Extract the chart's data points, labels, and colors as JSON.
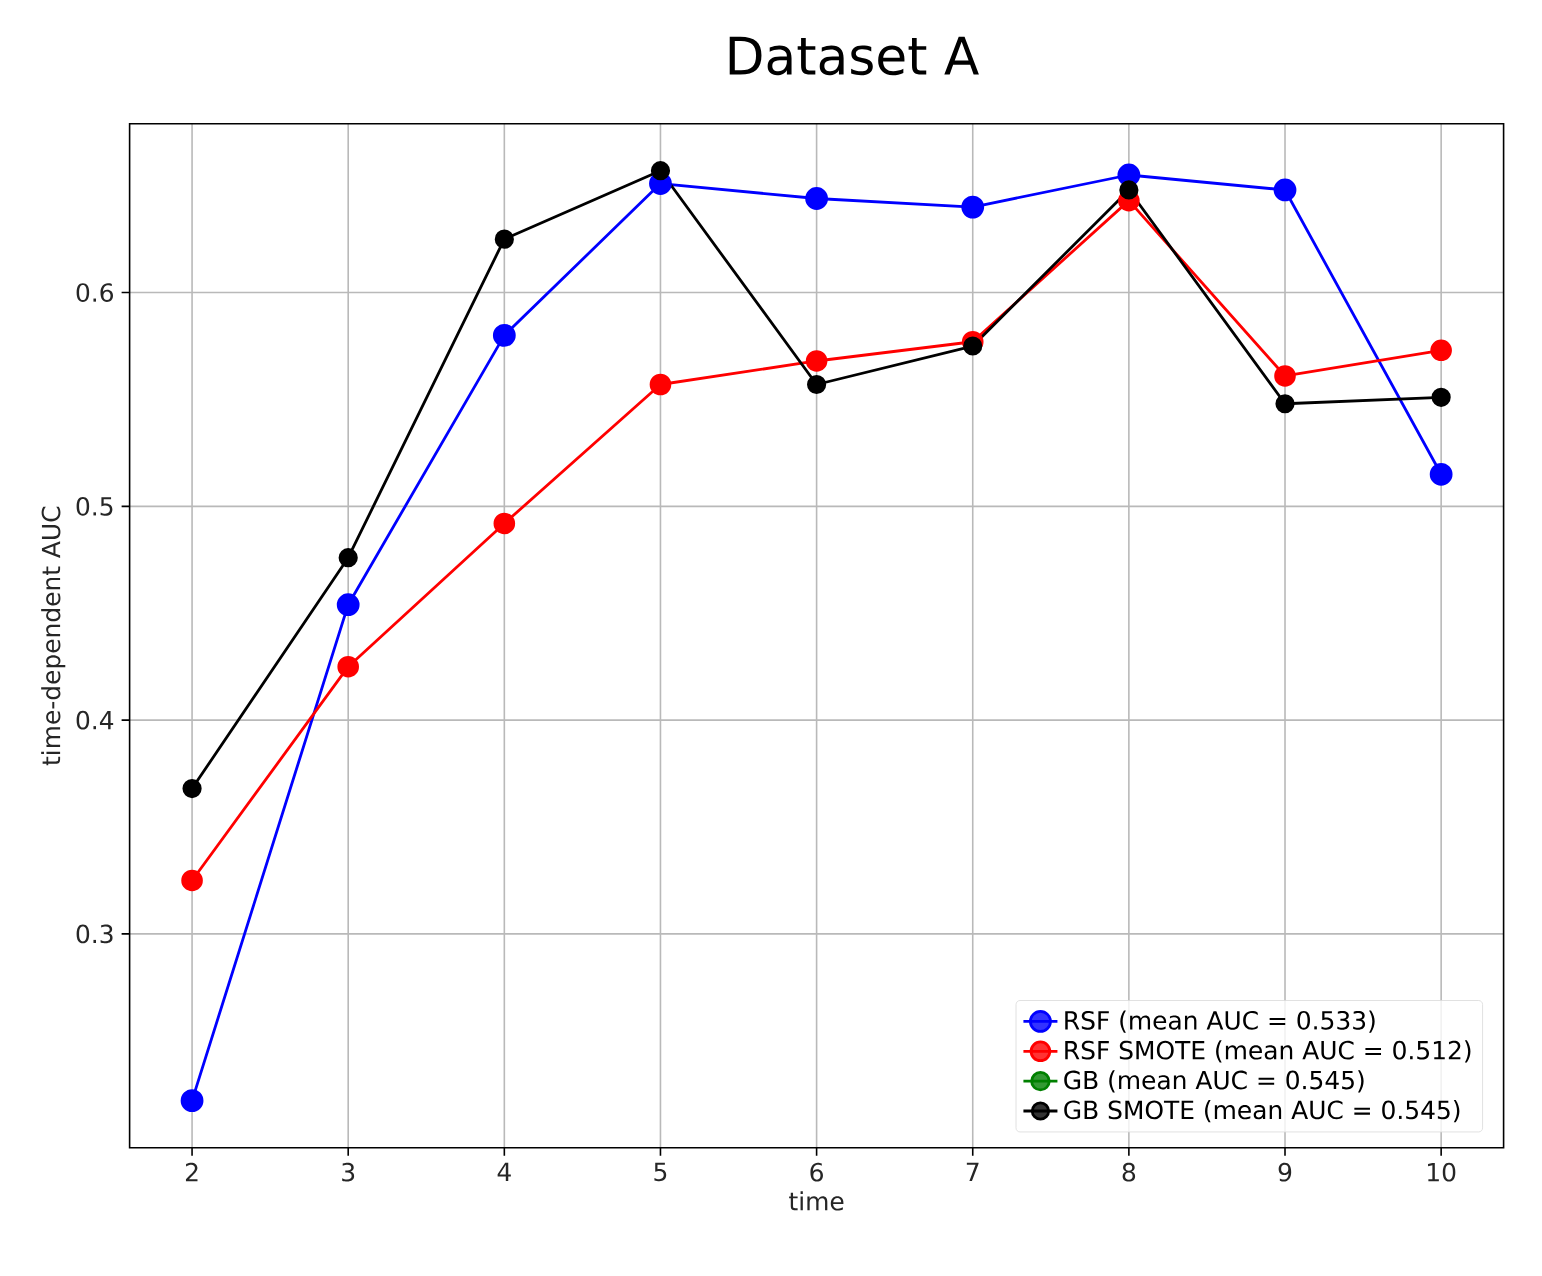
{
  "chart_data": {
    "type": "line",
    "title": "Dataset A",
    "xlabel": "time",
    "ylabel": "time-dependent AUC",
    "x": [
      2,
      3,
      4,
      5,
      6,
      7,
      8,
      9,
      10
    ],
    "series": [
      {
        "name": "RSF (mean AUC = 0.533)",
        "color": "#0000ff",
        "values": [
          0.222,
          0.454,
          0.58,
          0.651,
          0.644,
          0.64,
          0.655,
          0.648,
          0.515
        ]
      },
      {
        "name": "RSF SMOTE (mean AUC = 0.512)",
        "color": "#ff0000",
        "values": [
          0.325,
          0.425,
          0.492,
          0.557,
          0.568,
          0.577,
          0.643,
          0.561,
          0.573
        ]
      },
      {
        "name": "GB (mean AUC = 0.545)",
        "color": "#008000",
        "values": [
          null,
          null,
          null,
          null,
          null,
          null,
          null,
          null,
          null
        ]
      },
      {
        "name": "GB SMOTE (mean AUC = 0.545)",
        "color": "#000000",
        "values": [
          0.368,
          0.476,
          0.625,
          0.657,
          0.557,
          0.575,
          0.648,
          0.548,
          0.551
        ]
      }
    ],
    "xlim": [
      1.6,
      10.4
    ],
    "ylim": [
      0.2,
      0.679
    ],
    "xticks": [
      2,
      3,
      4,
      5,
      6,
      7,
      8,
      9,
      10
    ],
    "yticks": [
      0.3,
      0.4,
      0.5,
      0.6
    ],
    "grid": true,
    "legend": "bottom right",
    "marker": "circle",
    "line_style": "solid"
  }
}
